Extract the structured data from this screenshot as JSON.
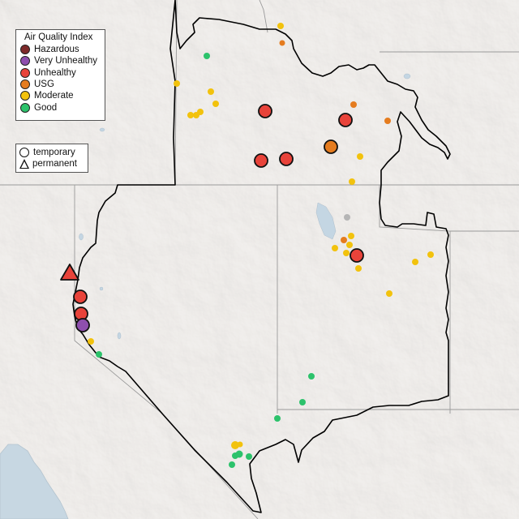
{
  "colors": {
    "hazardous": "#7e2a2a",
    "very_unhealthy": "#8e4fae",
    "unhealthy": "#e8433a",
    "usg": "#e57c1f",
    "moderate": "#f2c20d",
    "good": "#2cc26b",
    "no_data": "#b5b5b5"
  },
  "aqi_legend": {
    "title": "Air Quality Index",
    "items": [
      {
        "label": "Hazardous",
        "color": "#7e2a2a"
      },
      {
        "label": "Very Unhealthy",
        "color": "#8e4fae"
      },
      {
        "label": "Unhealthy",
        "color": "#e8433a"
      },
      {
        "label": "USG",
        "color": "#e57c1f"
      },
      {
        "label": "Moderate",
        "color": "#f2c20d"
      },
      {
        "label": "Good",
        "color": "#2cc26b"
      }
    ]
  },
  "monitor_legend": {
    "items": [
      {
        "label": "temporary",
        "shape": "circle"
      },
      {
        "label": "permanent",
        "shape": "triangle"
      }
    ]
  }
}
